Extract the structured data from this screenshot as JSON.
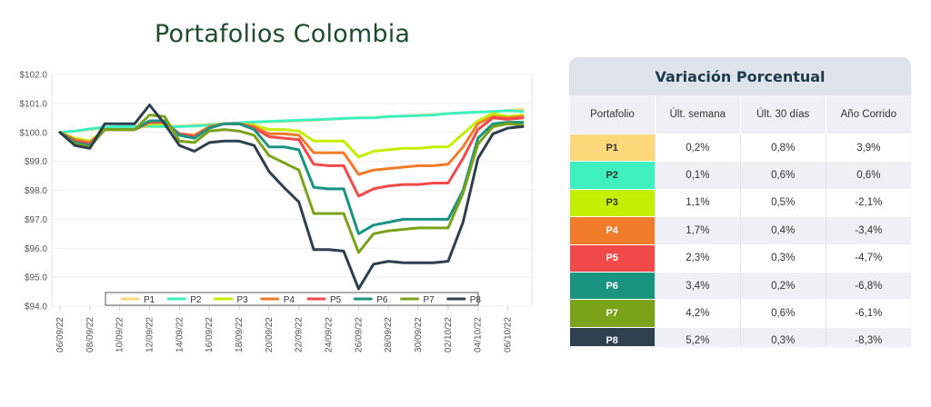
{
  "chart_data": {
    "type": "line",
    "title": "Portafolios Colombia",
    "x": [
      "06/09/22",
      "07/09/22",
      "08/09/22",
      "09/09/22",
      "10/09/22",
      "11/09/22",
      "12/09/22",
      "13/09/22",
      "14/09/22",
      "15/09/22",
      "16/09/22",
      "17/09/22",
      "18/09/22",
      "19/09/22",
      "20/09/22",
      "21/09/22",
      "22/09/22",
      "23/09/22",
      "24/09/22",
      "25/09/22",
      "26/09/22",
      "27/09/22",
      "28/09/22",
      "29/09/22",
      "30/09/22",
      "01/10/22",
      "02/10/22",
      "03/10/22",
      "04/10/22",
      "05/10/22",
      "06/10/22",
      "07/10/22"
    ],
    "x_tick_labels": [
      "06/09/22",
      "08/09/22",
      "10/09/22",
      "12/09/22",
      "14/09/22",
      "16/09/22",
      "18/09/22",
      "20/09/22",
      "22/09/22",
      "24/09/22",
      "26/09/22",
      "28/09/22",
      "30/09/22",
      "02/10/22",
      "04/10/22",
      "06/10/22"
    ],
    "y_tick_labels": [
      "$102.0",
      "$101.0",
      "$100.0",
      "$99.0",
      "$98.0",
      "$97.0",
      "$96.0",
      "$95.0",
      "$94.0"
    ],
    "ylim": [
      94,
      102
    ],
    "legend_position": "bottom-inside",
    "series": [
      {
        "name": "P1",
        "color": "#fdd87a",
        "values": [
          100.0,
          100.05,
          100.1,
          100.15,
          100.18,
          100.2,
          100.2,
          100.2,
          100.22,
          100.25,
          100.28,
          100.3,
          100.32,
          100.35,
          100.37,
          100.38,
          100.4,
          100.42,
          100.45,
          100.48,
          100.5,
          100.52,
          100.55,
          100.57,
          100.6,
          100.62,
          100.65,
          100.68,
          100.7,
          100.72,
          100.75,
          100.8
        ]
      },
      {
        "name": "P2",
        "color": "#3ef0c0",
        "values": [
          100.0,
          100.05,
          100.12,
          100.18,
          100.2,
          100.2,
          100.22,
          100.2,
          100.2,
          100.22,
          100.25,
          100.3,
          100.33,
          100.36,
          100.38,
          100.4,
          100.42,
          100.44,
          100.46,
          100.48,
          100.5,
          100.5,
          100.55,
          100.56,
          100.58,
          100.6,
          100.65,
          100.68,
          100.7,
          100.72,
          100.75,
          100.72
        ]
      },
      {
        "name": "P3",
        "color": "#c3ef00",
        "values": [
          100.0,
          99.8,
          99.7,
          100.1,
          100.1,
          100.1,
          100.3,
          100.3,
          99.9,
          99.9,
          100.2,
          100.3,
          100.3,
          100.25,
          100.1,
          100.1,
          100.05,
          99.7,
          99.7,
          99.7,
          99.15,
          99.35,
          99.4,
          99.45,
          99.45,
          99.5,
          99.5,
          99.95,
          100.4,
          100.65,
          100.55,
          100.6
        ]
      },
      {
        "name": "P4",
        "color": "#f07c2a",
        "values": [
          100.0,
          99.75,
          99.65,
          100.1,
          100.1,
          100.1,
          100.35,
          100.35,
          99.95,
          99.9,
          100.2,
          100.3,
          100.3,
          100.2,
          99.95,
          99.95,
          99.9,
          99.3,
          99.3,
          99.3,
          98.55,
          98.7,
          98.75,
          98.8,
          98.85,
          98.85,
          98.9,
          99.5,
          100.3,
          100.55,
          100.5,
          100.55
        ]
      },
      {
        "name": "P5",
        "color": "#f24a4a",
        "values": [
          100.0,
          99.7,
          99.6,
          100.1,
          100.1,
          100.1,
          100.35,
          100.35,
          99.95,
          99.85,
          100.15,
          100.3,
          100.3,
          100.15,
          99.85,
          99.8,
          99.75,
          98.9,
          98.85,
          98.85,
          97.8,
          98.05,
          98.15,
          98.2,
          98.2,
          98.25,
          98.25,
          99.1,
          100.1,
          100.5,
          100.45,
          100.5
        ]
      },
      {
        "name": "P6",
        "color": "#1a9480",
        "values": [
          100.0,
          99.65,
          99.55,
          100.1,
          100.1,
          100.1,
          100.4,
          100.4,
          99.9,
          99.8,
          100.15,
          100.3,
          100.3,
          100.1,
          99.5,
          99.5,
          99.4,
          98.1,
          98.05,
          98.05,
          96.5,
          96.8,
          96.9,
          97.0,
          97.0,
          97.0,
          97.0,
          98.0,
          99.8,
          100.3,
          100.35,
          100.35
        ]
      },
      {
        "name": "P7",
        "color": "#7aa31a",
        "values": [
          100.0,
          99.6,
          99.5,
          100.1,
          100.1,
          100.1,
          100.6,
          100.55,
          99.7,
          99.65,
          100.05,
          100.1,
          100.05,
          99.9,
          99.2,
          98.95,
          98.7,
          97.2,
          97.2,
          97.2,
          95.85,
          96.5,
          96.6,
          96.65,
          96.7,
          96.7,
          96.7,
          97.9,
          99.6,
          100.2,
          100.3,
          100.25
        ]
      },
      {
        "name": "P8",
        "color": "#2e3f4f",
        "values": [
          100.0,
          99.55,
          99.45,
          100.3,
          100.3,
          100.3,
          100.95,
          100.3,
          99.55,
          99.35,
          99.65,
          99.7,
          99.7,
          99.55,
          98.65,
          98.1,
          97.6,
          95.95,
          95.95,
          95.9,
          94.6,
          95.45,
          95.55,
          95.5,
          95.5,
          95.5,
          95.55,
          96.9,
          99.1,
          99.95,
          100.15,
          100.2
        ]
      }
    ]
  },
  "table": {
    "title": "Variación Porcentual",
    "headers": [
      "Portafolio",
      "Últ. semana",
      "Últ. 30 días",
      "Año Corrido"
    ],
    "rows": [
      {
        "name": "P1",
        "color": "#fdd87a",
        "dark_text": false,
        "week": "0,2%",
        "days30": "0,8%",
        "ytd": "3,9%"
      },
      {
        "name": "P2",
        "color": "#3ef0c0",
        "dark_text": false,
        "week": "0,1%",
        "days30": "0,6%",
        "ytd": "0,6%"
      },
      {
        "name": "P3",
        "color": "#c3ef00",
        "dark_text": false,
        "week": "1,1%",
        "days30": "0,5%",
        "ytd": "-2,1%"
      },
      {
        "name": "P4",
        "color": "#f07c2a",
        "dark_text": true,
        "week": "1,7%",
        "days30": "0,4%",
        "ytd": "-3,4%"
      },
      {
        "name": "P5",
        "color": "#f24a4a",
        "dark_text": true,
        "week": "2,3%",
        "days30": "0,3%",
        "ytd": "-4,7%"
      },
      {
        "name": "P6",
        "color": "#1a9480",
        "dark_text": true,
        "week": "3,4%",
        "days30": "0,2%",
        "ytd": "-6,8%"
      },
      {
        "name": "P7",
        "color": "#7aa31a",
        "dark_text": true,
        "week": "4,2%",
        "days30": "0,6%",
        "ytd": "-6,1%"
      },
      {
        "name": "P8",
        "color": "#2e3f4f",
        "dark_text": true,
        "week": "5,2%",
        "days30": "0,3%",
        "ytd": "-8,3%"
      }
    ]
  }
}
